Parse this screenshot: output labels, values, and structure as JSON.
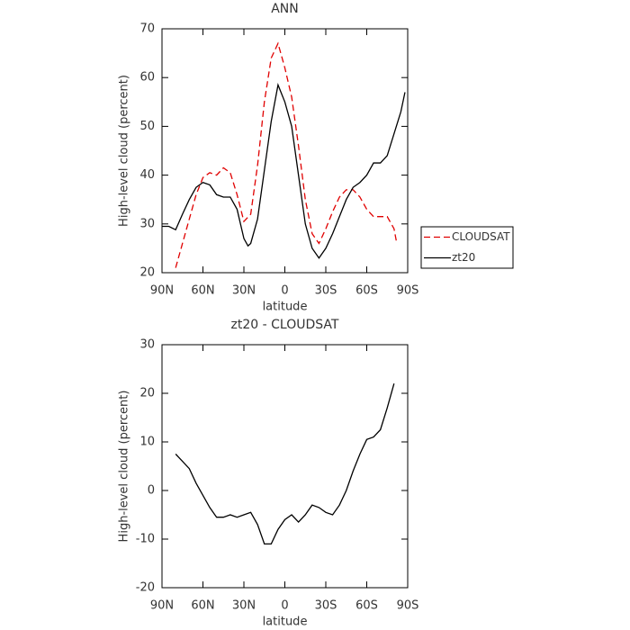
{
  "chart_data": [
    {
      "type": "line",
      "title": "ANN",
      "xlabel": "latitude",
      "ylabel": "High-level cloud (percent)",
      "xlim": [
        90,
        -90
      ],
      "ylim": [
        20,
        70
      ],
      "xticks": [
        {
          "value": 90,
          "label": "90N"
        },
        {
          "value": 60,
          "label": "60N"
        },
        {
          "value": 30,
          "label": "30N"
        },
        0,
        {
          "value": -30,
          "label": "30S"
        },
        {
          "value": -60,
          "label": "60S"
        },
        {
          "value": -90,
          "label": "90S"
        }
      ],
      "yticks": [
        20,
        30,
        40,
        50,
        60,
        70
      ],
      "legend": "outside-right",
      "series": [
        {
          "name": "CLOUDSAT",
          "color": "#e00000",
          "dashed": true,
          "x": [
            80,
            75,
            70,
            65,
            60,
            55,
            50,
            45,
            40,
            35,
            30,
            25,
            20,
            15,
            10,
            5,
            0,
            -5,
            -10,
            -15,
            -20,
            -25,
            -30,
            -35,
            -40,
            -45,
            -50,
            -55,
            -60,
            -65,
            -70,
            -75,
            -80,
            -82
          ],
          "values": [
            21,
            26,
            31,
            36,
            39.5,
            40.5,
            40,
            41.5,
            40.5,
            36,
            30.5,
            32,
            42,
            55,
            64,
            67,
            62,
            56,
            46,
            35,
            28,
            26,
            29,
            32.5,
            35.5,
            37,
            37,
            35.5,
            33,
            31.5,
            31.5,
            31.5,
            29,
            26
          ]
        },
        {
          "name": "zt20",
          "color": "#000000",
          "dashed": false,
          "x": [
            90,
            85,
            80,
            75,
            70,
            65,
            60,
            55,
            50,
            45,
            40,
            35,
            30,
            27,
            25,
            20,
            15,
            10,
            5,
            0,
            -5,
            -10,
            -15,
            -20,
            -25,
            -30,
            -35,
            -40,
            -45,
            -50,
            -55,
            -60,
            -65,
            -70,
            -75,
            -80,
            -85,
            -88
          ],
          "values": [
            29.5,
            29.5,
            28.8,
            32,
            35,
            37.5,
            38.5,
            38,
            36,
            35.5,
            35.5,
            33,
            27,
            25.5,
            26,
            31,
            41,
            51,
            58.5,
            55,
            50,
            40,
            30,
            25,
            23,
            25,
            28,
            31.5,
            35,
            37.5,
            38.5,
            40,
            42.5,
            42.5,
            44,
            48.5,
            53,
            57
          ]
        }
      ]
    },
    {
      "type": "line",
      "title": "zt20 - CLOUDSAT",
      "xlabel": "latitude",
      "ylabel": "High-level cloud (percent)",
      "xlim": [
        90,
        -90
      ],
      "ylim": [
        -20,
        30
      ],
      "xticks": [
        {
          "value": 90,
          "label": "90N"
        },
        {
          "value": 60,
          "label": "60N"
        },
        {
          "value": 30,
          "label": "30N"
        },
        0,
        {
          "value": -30,
          "label": "30S"
        },
        {
          "value": -60,
          "label": "60S"
        },
        {
          "value": -90,
          "label": "90S"
        }
      ],
      "yticks": [
        -20,
        -10,
        0,
        10,
        20,
        30
      ],
      "series": [
        {
          "color": "#000000",
          "dashed": false,
          "x": [
            80,
            75,
            70,
            65,
            60,
            55,
            50,
            45,
            40,
            35,
            30,
            25,
            20,
            15,
            10,
            5,
            0,
            -5,
            -10,
            -15,
            -20,
            -25,
            -30,
            -35,
            -40,
            -45,
            -50,
            -55,
            -60,
            -65,
            -70,
            -75,
            -80
          ],
          "values": [
            7.5,
            6,
            4.5,
            1.5,
            -1,
            -3.5,
            -5.5,
            -5.5,
            -5,
            -5.5,
            -5,
            -4.5,
            -7,
            -11,
            -11,
            -8,
            -6,
            -5,
            -6.5,
            -5,
            -3,
            -3.5,
            -4.5,
            -5,
            -3,
            0,
            4,
            7.5,
            10.5,
            11,
            12.5,
            17,
            22
          ]
        }
      ]
    }
  ]
}
